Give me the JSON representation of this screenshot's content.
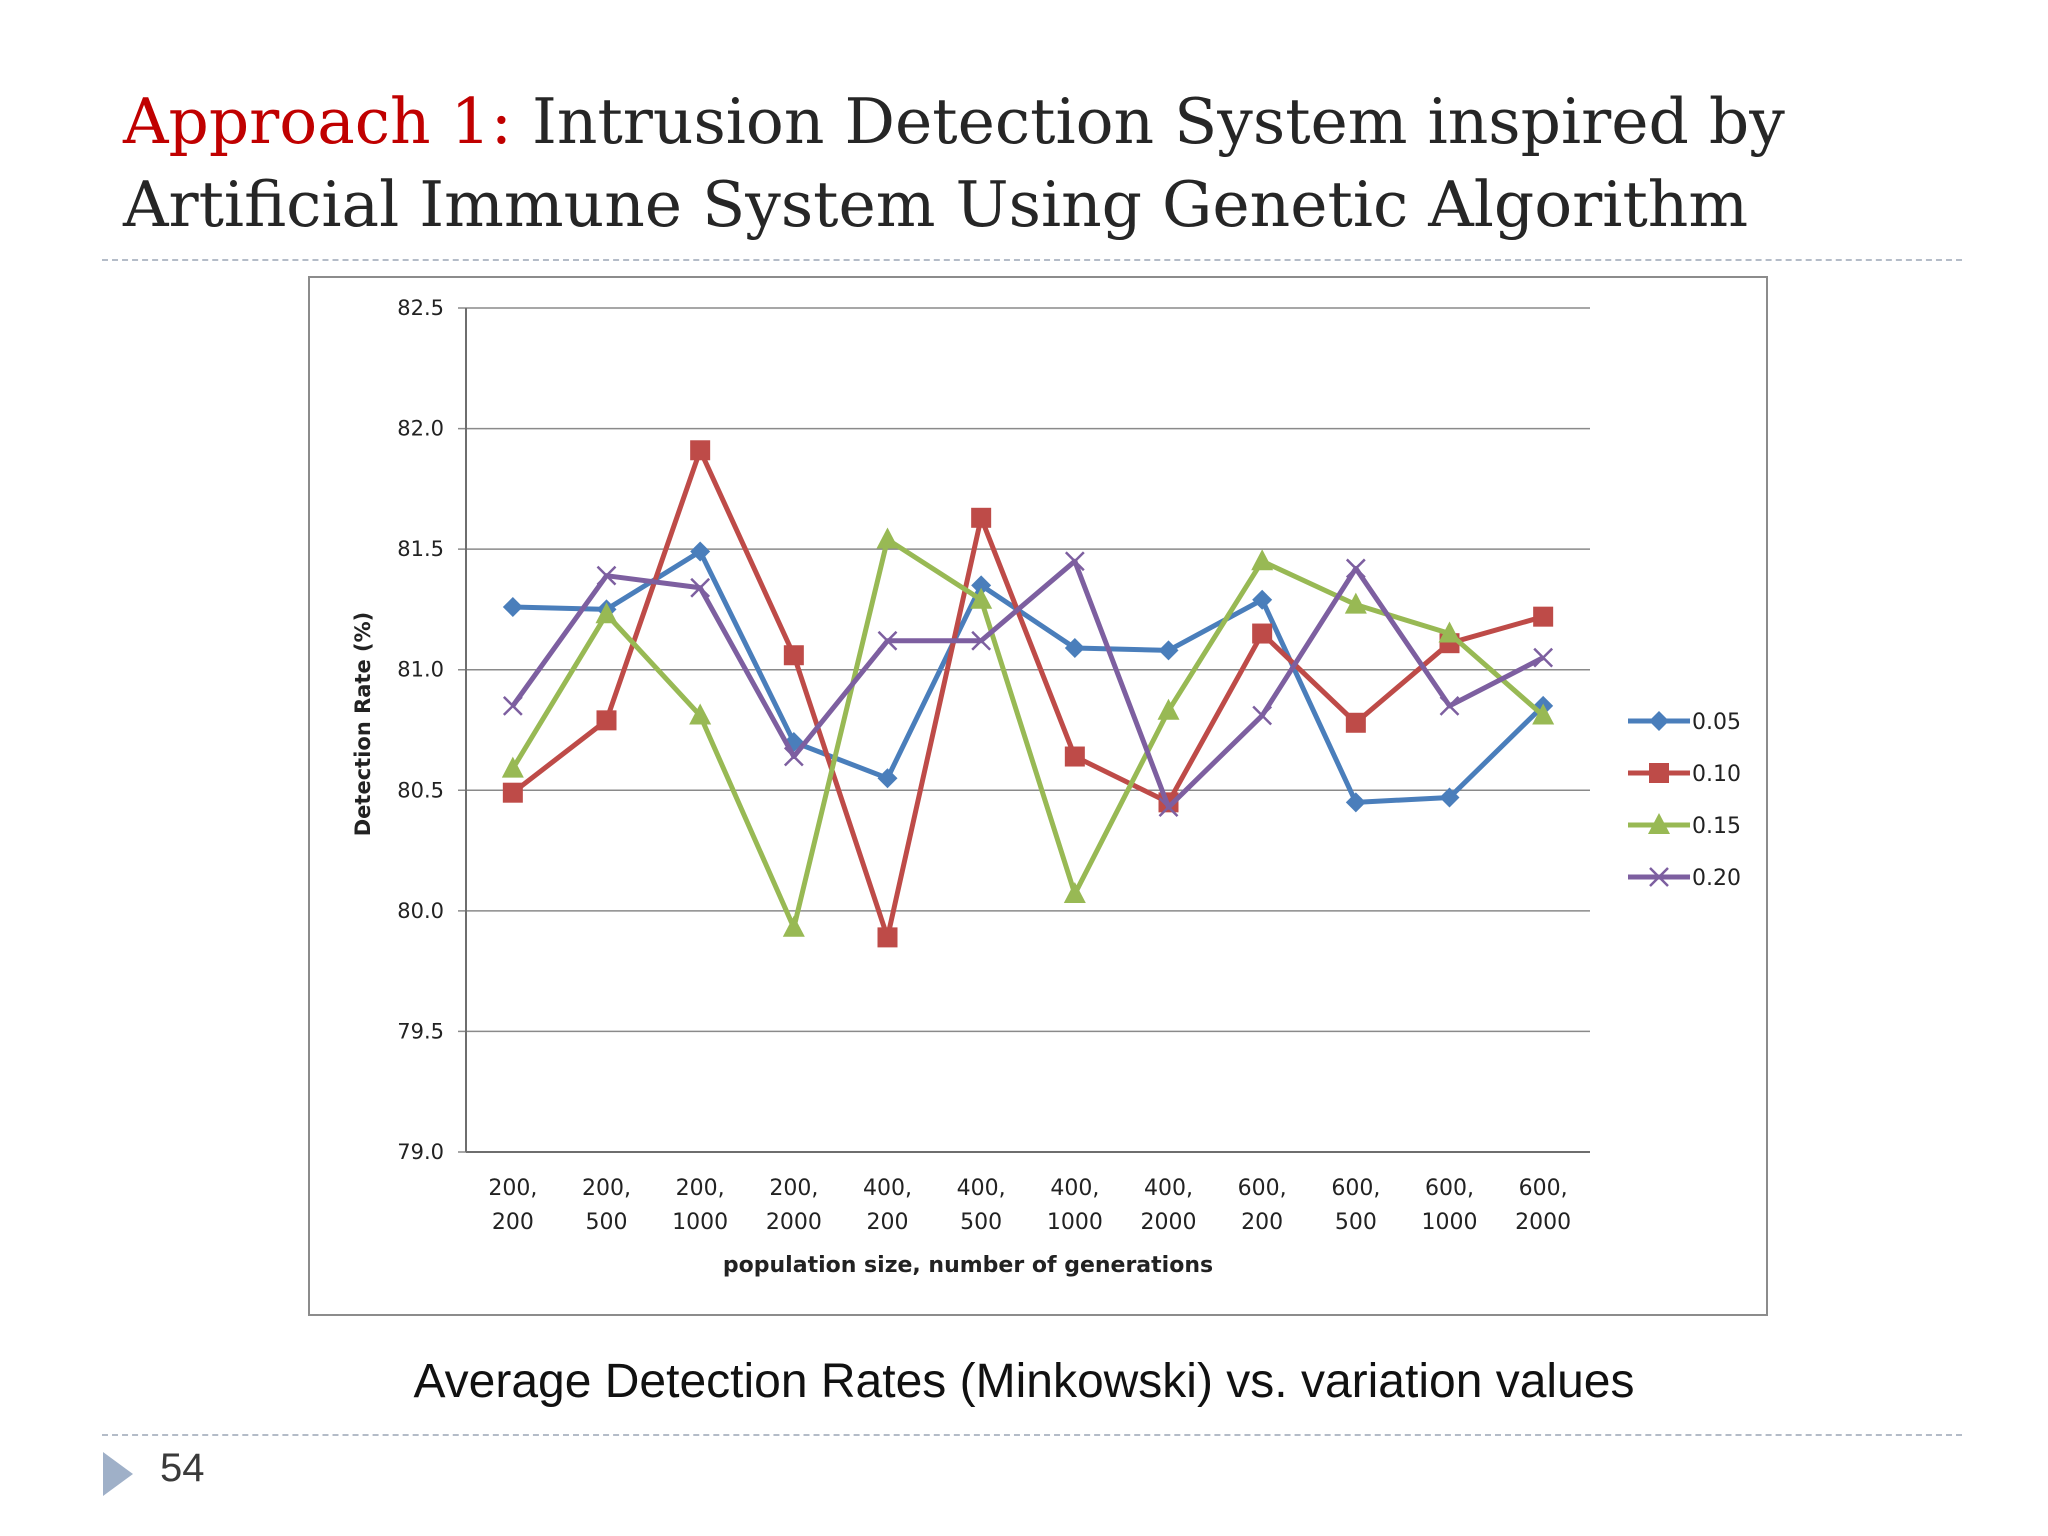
{
  "slide": {
    "title_accent": "Approach 1:",
    "title_line1_rest": " Intrusion Detection System inspired by",
    "title_line2": "Artificial Immune System Using Genetic Algorithm",
    "caption": "Average Detection Rates (Minkowski) vs. variation values",
    "page_number": "54",
    "bullet_icon": "triangle-bullet-icon"
  },
  "chart_data": {
    "type": "line",
    "title": "",
    "xlabel": "population size, number of generations",
    "ylabel": "Detection Rate (%)",
    "ylim": [
      79.0,
      82.5
    ],
    "y_ticks": [
      "82.5",
      "82.0",
      "81.5",
      "81.0",
      "80.5",
      "80.0",
      "79.5",
      "79.0"
    ],
    "grid": true,
    "legend_position": "right",
    "categories": [
      [
        "200,",
        "200"
      ],
      [
        "200,",
        "500"
      ],
      [
        "200,",
        "1000"
      ],
      [
        "200,",
        "2000"
      ],
      [
        "400,",
        "200"
      ],
      [
        "400,",
        "500"
      ],
      [
        "400,",
        "1000"
      ],
      [
        "400,",
        "2000"
      ],
      [
        "600,",
        "200"
      ],
      [
        "600,",
        "500"
      ],
      [
        "600,",
        "1000"
      ],
      [
        "600,",
        "2000"
      ]
    ],
    "series": [
      {
        "name": "0.05",
        "color": "#4a7ebb",
        "marker": "diamond",
        "values": [
          81.26,
          81.25,
          81.49,
          80.7,
          80.55,
          81.35,
          81.09,
          81.08,
          81.29,
          80.45,
          80.47,
          80.85
        ]
      },
      {
        "name": "0.10",
        "color": "#be4b48",
        "marker": "square",
        "values": [
          80.49,
          80.79,
          81.91,
          81.06,
          79.89,
          81.63,
          80.64,
          80.45,
          81.15,
          80.78,
          81.11,
          81.22
        ]
      },
      {
        "name": "0.15",
        "color": "#98b954",
        "marker": "triangle",
        "values": [
          80.59,
          81.23,
          80.81,
          79.93,
          81.54,
          81.29,
          80.07,
          80.83,
          81.45,
          81.27,
          81.15,
          80.81
        ]
      },
      {
        "name": "0.20",
        "color": "#7d5fa0",
        "marker": "x",
        "values": [
          80.85,
          81.39,
          81.34,
          80.64,
          81.12,
          81.12,
          81.45,
          80.43,
          80.81,
          81.42,
          80.85,
          81.05
        ]
      }
    ]
  }
}
